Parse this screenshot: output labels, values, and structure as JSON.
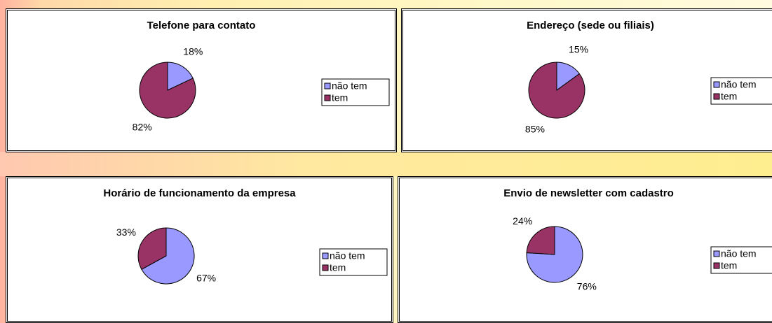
{
  "chart_data": [
    {
      "type": "pie",
      "title": "Telefone para contato",
      "categories": [
        "não tem",
        "tem"
      ],
      "values": [
        18,
        82
      ],
      "value_labels": [
        "18%",
        "82%"
      ],
      "colors": [
        "#9999ff",
        "#993366"
      ]
    },
    {
      "type": "pie",
      "title": "Endereço (sede ou filiais)",
      "categories": [
        "não tem",
        "tem"
      ],
      "values": [
        15,
        85
      ],
      "value_labels": [
        "15%",
        "85%"
      ],
      "colors": [
        "#9999ff",
        "#993366"
      ]
    },
    {
      "type": "pie",
      "title": "Horário de funcionamento da empresa",
      "categories": [
        "não tem",
        "tem"
      ],
      "values": [
        67,
        33
      ],
      "value_labels": [
        "67%",
        "33%"
      ],
      "colors": [
        "#9999ff",
        "#993366"
      ]
    },
    {
      "type": "pie",
      "title": "Envio de newsletter com cadastro",
      "categories": [
        "não tem",
        "tem"
      ],
      "values": [
        76,
        24
      ],
      "value_labels": [
        "76%",
        "24%"
      ],
      "colors": [
        "#9999ff",
        "#993366"
      ]
    }
  ]
}
